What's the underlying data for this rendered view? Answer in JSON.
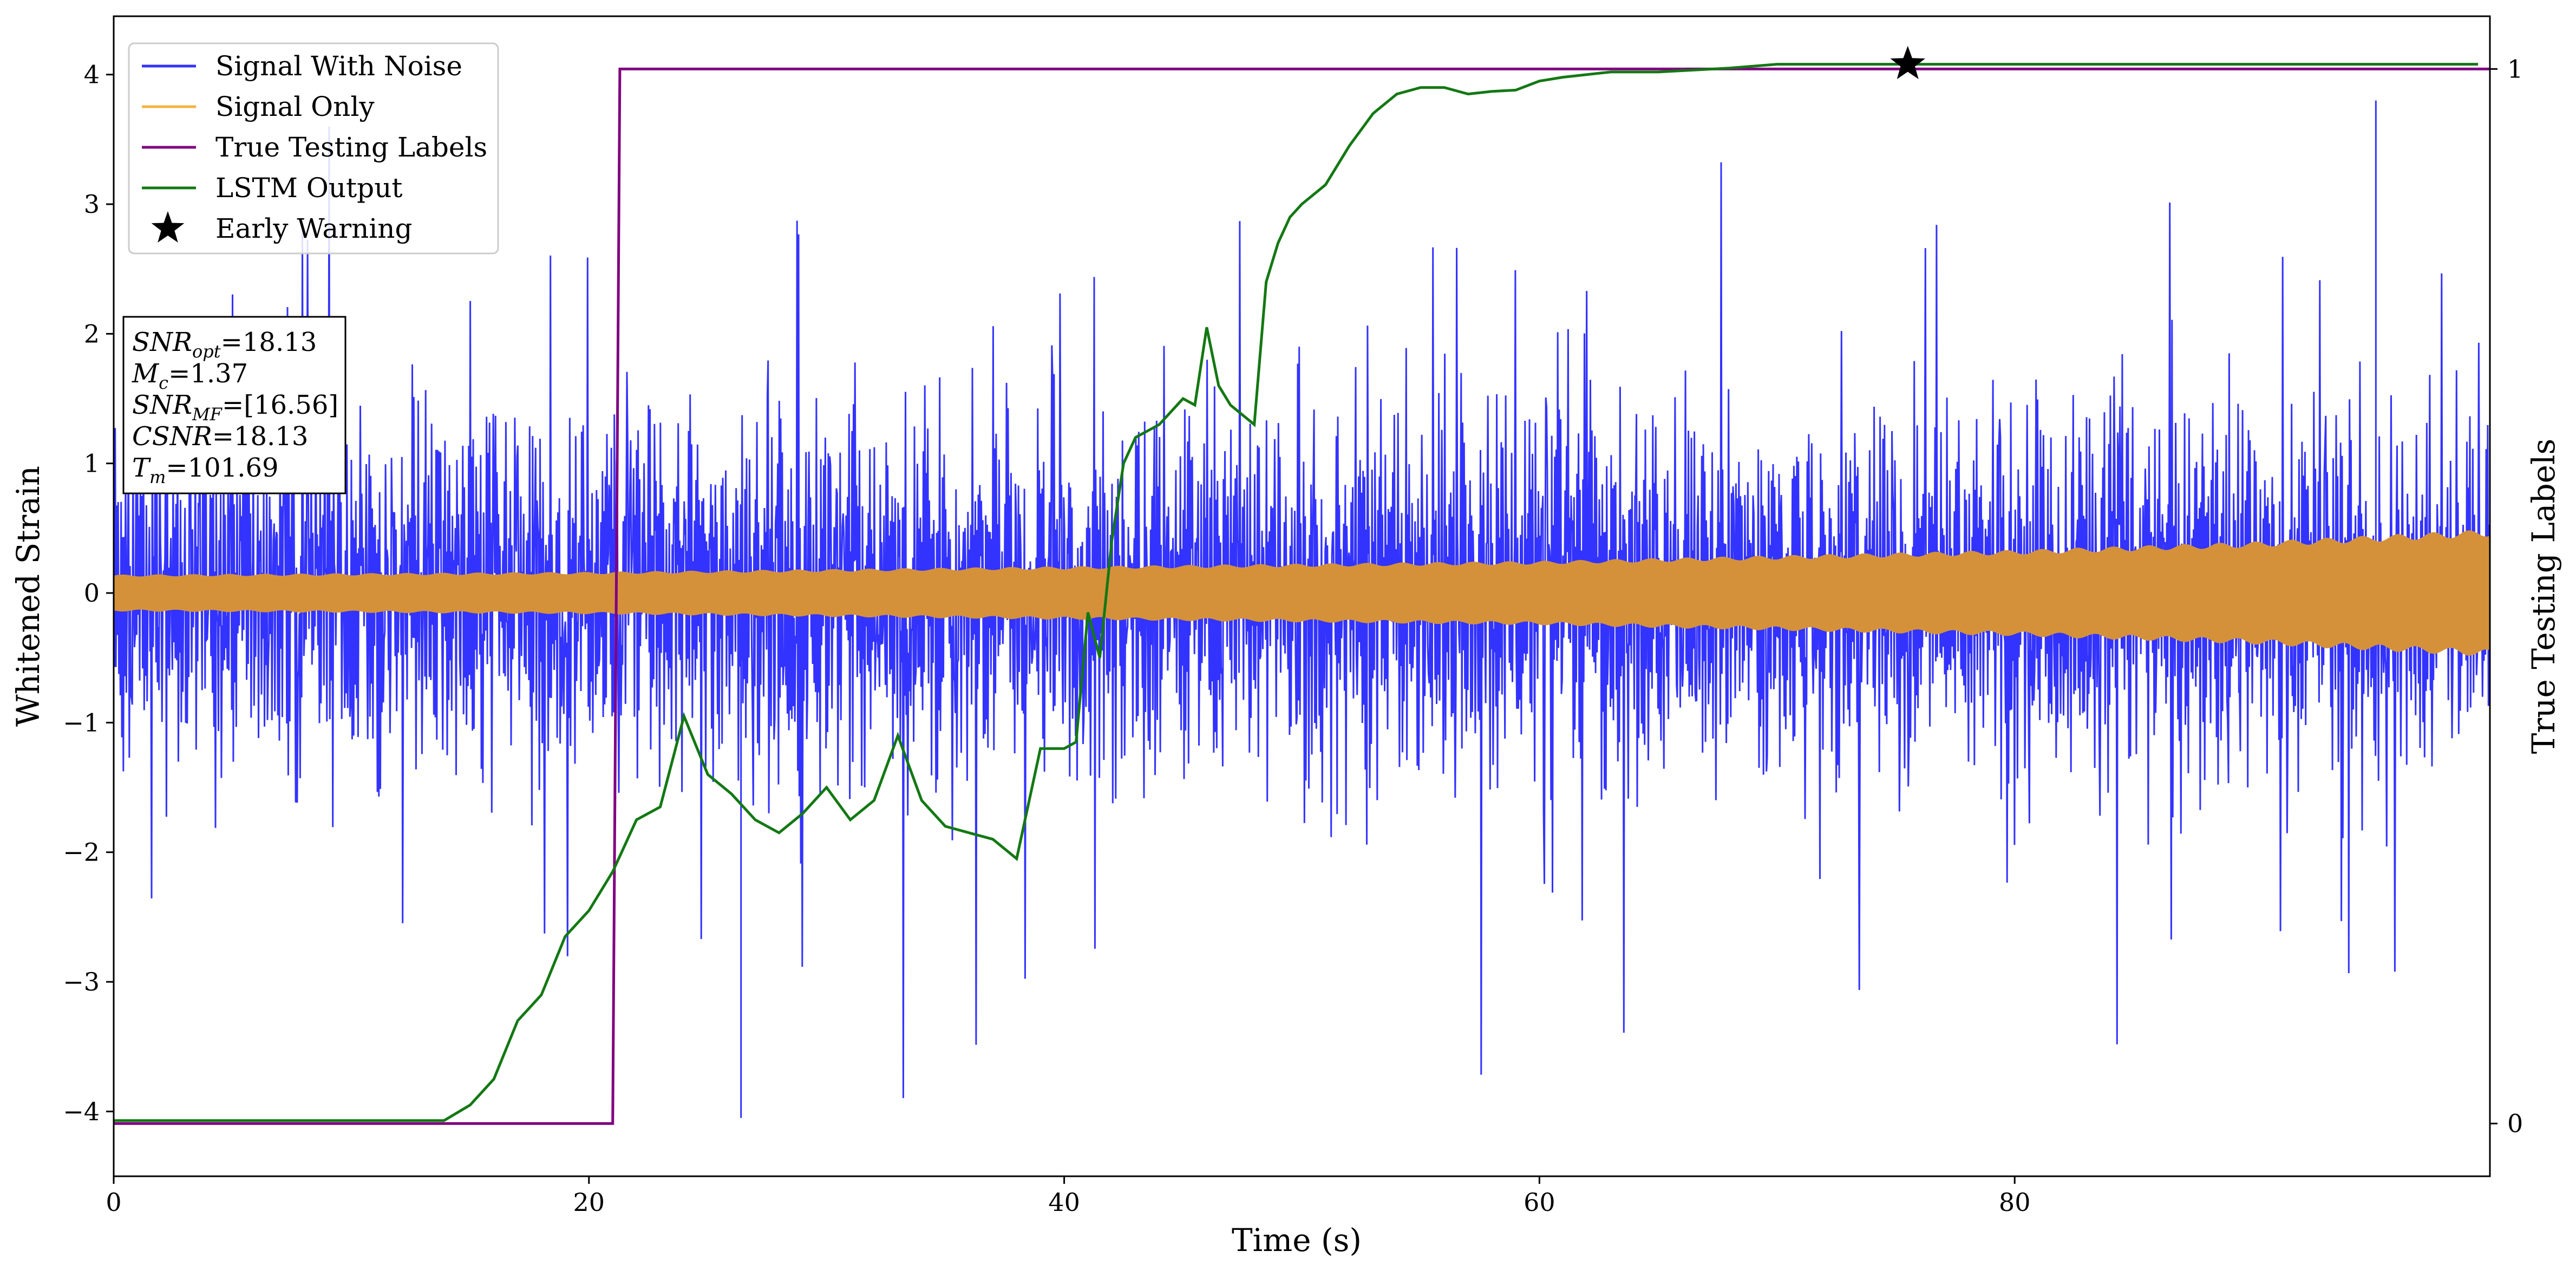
{
  "chart_data": {
    "type": "line",
    "xlabel": "Time (s)",
    "ylabel": "Whitened Strain",
    "ylabel_right": "True Testing Labels",
    "xlim": [
      0,
      100
    ],
    "ylim": [
      -4.5,
      4.45
    ],
    "ylim_right": [
      -0.05,
      1.05
    ],
    "x_ticks": [
      0,
      20,
      40,
      60,
      80
    ],
    "y_ticks": [
      -4,
      -3,
      -2,
      -1,
      0,
      1,
      2,
      3,
      4
    ],
    "y_tick_labels": [
      "−4",
      "−3",
      "−2",
      "−1",
      "0",
      "1",
      "2",
      "3",
      "4"
    ],
    "y_right_ticks": [
      0,
      1
    ],
    "grid": false,
    "legend_position": "top-left",
    "series": [
      {
        "name": "Signal With Noise",
        "color": "#3333ff",
        "kind": "noise",
        "axis": "left",
        "typical_amplitude": 1.3,
        "occasional_peaks": [
          3.8,
          -4.05
        ]
      },
      {
        "name": "Signal Only",
        "color": "#f5b342",
        "render_color": "#d4913a",
        "kind": "envelope",
        "axis": "left",
        "x": [
          0,
          20,
          40,
          60,
          80,
          90,
          100
        ],
        "amplitude": [
          0.13,
          0.15,
          0.19,
          0.23,
          0.31,
          0.37,
          0.46
        ]
      },
      {
        "name": "True Testing Labels",
        "color": "#800080",
        "axis": "right",
        "x": [
          0,
          21,
          21.3,
          100
        ],
        "y": [
          0,
          0,
          1,
          1
        ]
      },
      {
        "name": "LSTM Output",
        "color": "#137813",
        "axis": "left",
        "x": [
          0,
          10,
          13.9,
          15,
          16,
          17,
          17.5,
          18,
          19,
          20,
          21,
          22,
          23,
          24,
          25,
          26,
          27,
          28,
          29,
          30,
          31,
          32,
          33,
          34,
          35,
          36,
          37,
          38,
          39,
          40,
          40.5,
          41,
          41.5,
          42,
          42.5,
          43,
          44,
          45,
          45.5,
          46,
          46.5,
          47,
          48,
          48.5,
          49,
          49.5,
          50,
          51,
          52,
          53,
          54,
          55,
          56,
          57,
          58,
          59,
          60,
          61,
          62,
          63,
          65,
          68,
          70,
          75.5,
          80,
          90,
          99.5
        ],
        "y": [
          -4.07,
          -4.07,
          -4.07,
          -3.95,
          -3.75,
          -3.3,
          -3.2,
          -3.1,
          -2.65,
          -2.45,
          -2.15,
          -1.75,
          -1.65,
          -0.95,
          -1.4,
          -1.55,
          -1.75,
          -1.85,
          -1.7,
          -1.5,
          -1.75,
          -1.6,
          -1.1,
          -1.6,
          -1.8,
          -1.85,
          -1.9,
          -2.05,
          -1.2,
          -1.2,
          -1.15,
          -0.15,
          -0.5,
          0.4,
          1.0,
          1.2,
          1.3,
          1.5,
          1.45,
          2.05,
          1.6,
          1.45,
          1.3,
          2.4,
          2.7,
          2.9,
          3.0,
          3.15,
          3.45,
          3.7,
          3.85,
          3.9,
          3.9,
          3.85,
          3.87,
          3.88,
          3.95,
          3.98,
          4.0,
          4.02,
          4.02,
          4.05,
          4.08,
          4.08,
          4.08,
          4.08,
          4.08
        ]
      }
    ],
    "markers": [
      {
        "name": "Early Warning",
        "symbol": "star",
        "color": "#000000",
        "x": 75.5,
        "y": 4.08
      }
    ],
    "annotation_box": [
      {
        "base": "SNR",
        "sub": "opt",
        "value": "=18.13"
      },
      {
        "base": "M",
        "sub": "c",
        "value": "=1.37"
      },
      {
        "base": "SNR",
        "sub": "MF",
        "value": "=[16.56]"
      },
      {
        "base": "CSNR",
        "sub": "",
        "value": "=18.13"
      },
      {
        "base": "T",
        "sub": "m",
        "value": "=101.69"
      }
    ]
  }
}
